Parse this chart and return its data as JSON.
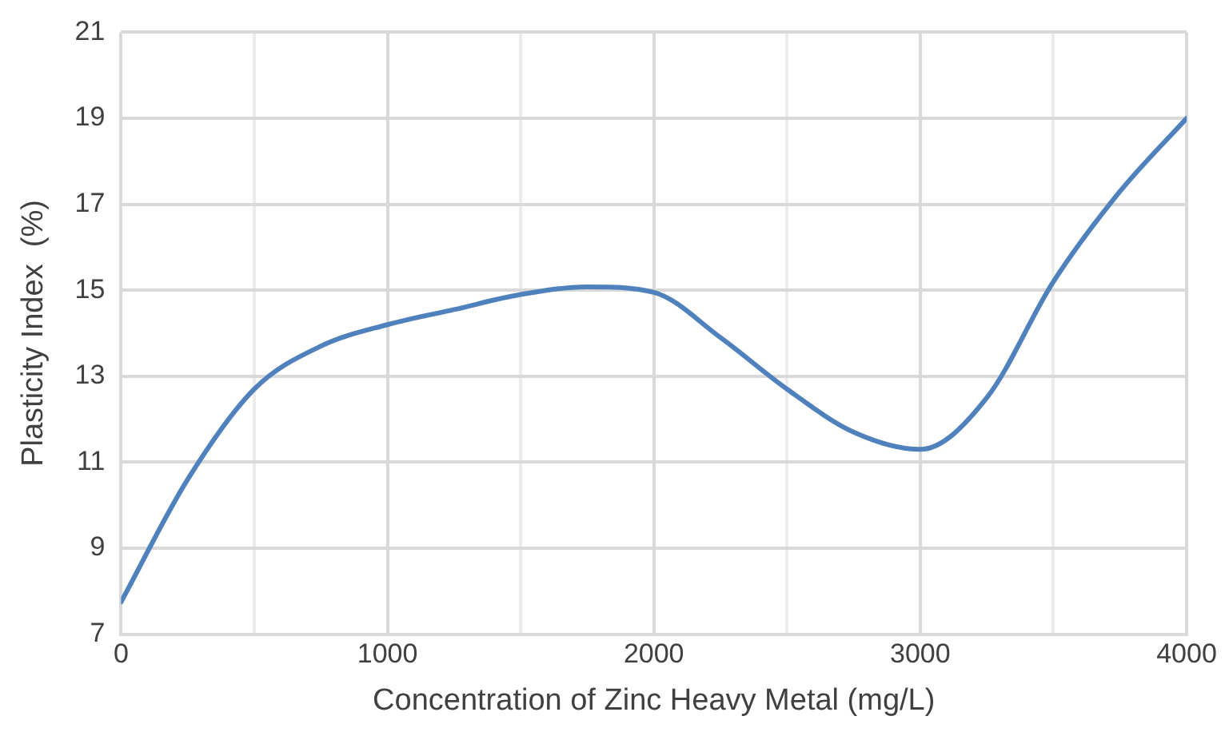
{
  "chart_data": {
    "type": "line",
    "xlabel": "Concentration of Zinc Heavy Metal (mg/L)",
    "ylabel": "Plasticity Index  (%)",
    "x": [
      0,
      250,
      500,
      750,
      1000,
      1250,
      1500,
      1750,
      2000,
      2250,
      2500,
      2750,
      3000,
      3250,
      3500,
      3750,
      4000
    ],
    "series": [
      {
        "color": "#4f81bd",
        "values": [
          7.75,
          10.6,
          12.7,
          13.7,
          14.2,
          14.55,
          14.9,
          15.08,
          14.95,
          13.9,
          12.7,
          11.7,
          11.3,
          12.5,
          15.2,
          17.3,
          19.0
        ]
      }
    ],
    "xlim": [
      0,
      4000
    ],
    "xticks": [
      0,
      {
        "value": 500,
        "label": null
      },
      1000,
      {
        "value": 1500,
        "label": null
      },
      2000,
      {
        "value": 2500,
        "label": null
      },
      3000,
      {
        "value": 3500,
        "label": null
      },
      4000
    ],
    "ylim": [
      7,
      21
    ],
    "yticks": [
      7,
      9,
      11,
      13,
      15,
      17,
      19,
      21
    ],
    "grid": true,
    "marker": "none",
    "line_style": "solid",
    "legend": false
  }
}
